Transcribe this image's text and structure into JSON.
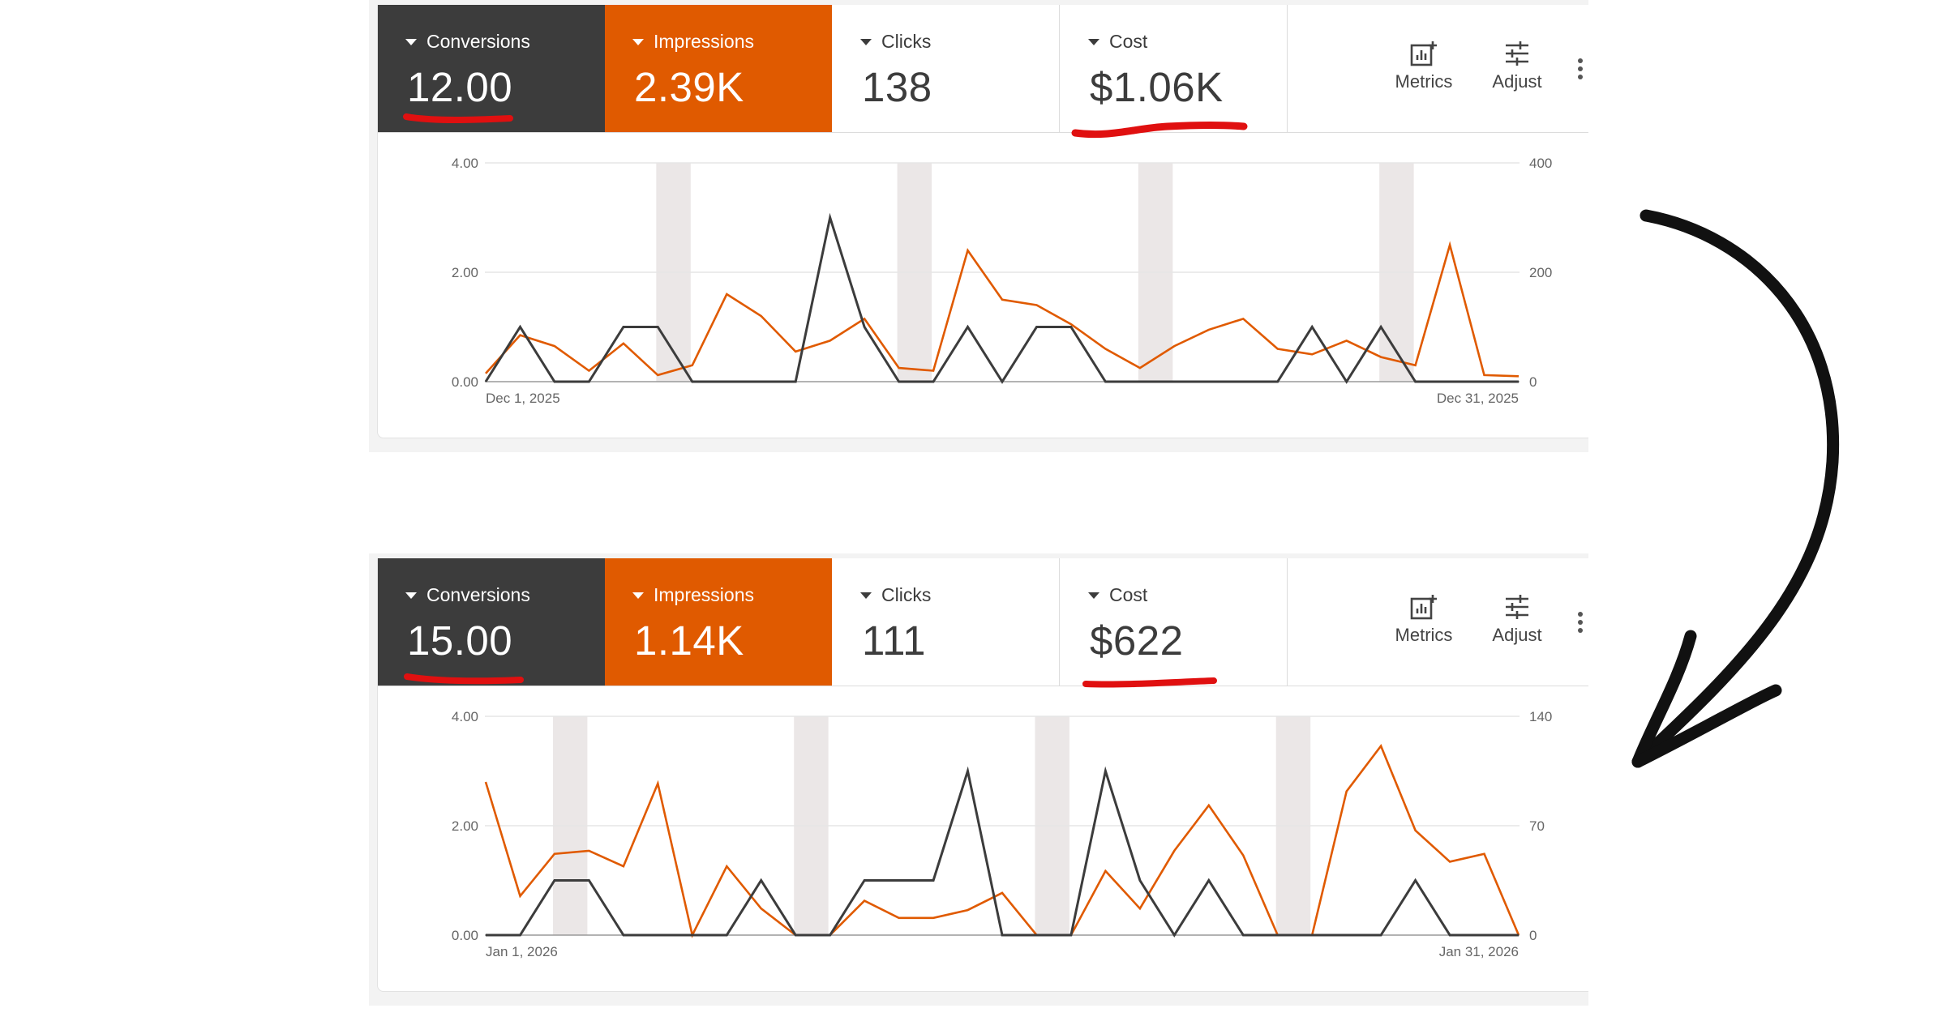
{
  "panels": [
    {
      "tiles": [
        {
          "label": "Conversions",
          "value": "12.00"
        },
        {
          "label": "Impressions",
          "value": "2.39K"
        },
        {
          "label": "Clicks",
          "value": "138"
        },
        {
          "label": "Cost",
          "value": "$1.06K"
        }
      ],
      "tools": {
        "metrics_label": "Metrics",
        "adjust_label": "Adjust",
        "metrics_icon": "add-chart-icon",
        "adjust_icon": "tune-sliders-icon",
        "more_icon": "more-vert-icon"
      },
      "chart": {
        "left_ticks": [
          "4.00",
          "2.00",
          "0.00"
        ],
        "right_ticks": [
          "400",
          "200",
          "0"
        ],
        "x_start_label": "Dec 1, 2025",
        "x_end_label": "Dec 31, 2025"
      }
    },
    {
      "tiles": [
        {
          "label": "Conversions",
          "value": "15.00"
        },
        {
          "label": "Impressions",
          "value": "1.14K"
        },
        {
          "label": "Clicks",
          "value": "111"
        },
        {
          "label": "Cost",
          "value": "$622"
        }
      ],
      "tools": {
        "metrics_label": "Metrics",
        "adjust_label": "Adjust",
        "metrics_icon": "add-chart-icon",
        "adjust_icon": "tune-sliders-icon",
        "more_icon": "more-vert-icon"
      },
      "chart": {
        "left_ticks": [
          "4.00",
          "2.00",
          "0.00"
        ],
        "right_ticks": [
          "140",
          "70",
          "0"
        ],
        "x_start_label": "Jan 1, 2026",
        "x_end_label": "Jan 31, 2026"
      }
    }
  ],
  "colors": {
    "conversions": "#3c3c3c",
    "impressions": "#e05a00",
    "weekend_band": "#ebe7e7",
    "underline": "#e01010",
    "arrow": "#111111"
  },
  "chart_data": [
    {
      "type": "line",
      "x": [
        1,
        2,
        3,
        4,
        5,
        6,
        7,
        8,
        9,
        10,
        11,
        12,
        13,
        14,
        15,
        16,
        17,
        18,
        19,
        20,
        21,
        22,
        23,
        24,
        25,
        26,
        27,
        28,
        29,
        30,
        31
      ],
      "series": [
        {
          "axis": "left",
          "ylim": [
            0,
            4
          ],
          "values": [
            0,
            1,
            0,
            0,
            1,
            1,
            0,
            0,
            0,
            0,
            3,
            1,
            0,
            0,
            1,
            0,
            1,
            1,
            0,
            0,
            0,
            0,
            0,
            0,
            1,
            0,
            1,
            0,
            0,
            0,
            0
          ]
        },
        {
          "axis": "right",
          "ylim": [
            0,
            400
          ],
          "values": [
            15,
            85,
            65,
            20,
            70,
            12,
            30,
            160,
            120,
            55,
            75,
            115,
            25,
            20,
            240,
            150,
            140,
            105,
            60,
            25,
            65,
            95,
            115,
            60,
            50,
            75,
            45,
            30,
            250,
            12,
            10
          ]
        }
      ],
      "shaded_days": [
        6,
        13,
        20,
        27
      ],
      "xlabel": "",
      "ylabel": ""
    },
    {
      "type": "line",
      "x": [
        1,
        2,
        3,
        4,
        5,
        6,
        7,
        8,
        9,
        10,
        11,
        12,
        13,
        14,
        15,
        16,
        17,
        18,
        19,
        20,
        21,
        22,
        23,
        24,
        25,
        26,
        27,
        28,
        29,
        30,
        31
      ],
      "series": [
        {
          "axis": "left",
          "ylim": [
            0,
            4
          ],
          "values": [
            0,
            0,
            1,
            1,
            0,
            0,
            0,
            0,
            1,
            0,
            0,
            1,
            1,
            1,
            3,
            0,
            0,
            0,
            3,
            1,
            0,
            1,
            0,
            0,
            0,
            0,
            0,
            1,
            0,
            0,
            0
          ]
        },
        {
          "axis": "right",
          "ylim": [
            0,
            140
          ],
          "values": [
            98,
            25,
            52,
            54,
            44,
            97,
            0,
            44,
            17,
            0,
            0,
            22,
            11,
            11,
            16,
            27,
            0,
            0,
            41,
            17,
            54,
            83,
            51,
            0,
            0,
            92,
            121,
            67,
            47,
            52,
            0
          ]
        }
      ],
      "shaded_days": [
        3,
        10,
        17,
        24
      ],
      "xlabel": "",
      "ylabel": ""
    }
  ]
}
